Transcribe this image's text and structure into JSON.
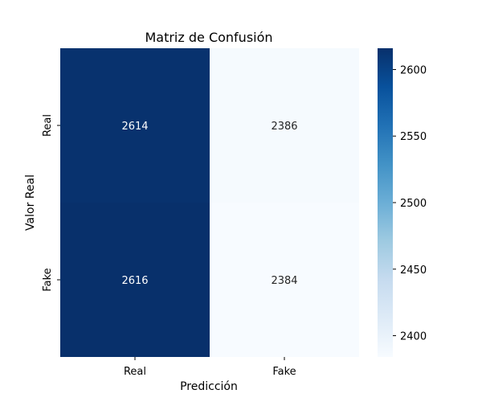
{
  "chart_data": {
    "type": "heatmap",
    "title": "Matriz de Confusión",
    "xlabel": "Predicción",
    "ylabel": "Valor Real",
    "x_categories": [
      "Real",
      "Fake"
    ],
    "y_categories": [
      "Real",
      "Fake"
    ],
    "values": [
      [
        2614,
        2386
      ],
      [
        2616,
        2384
      ]
    ],
    "colormap": "Blues",
    "colorbar": {
      "vmin": 2384,
      "vmax": 2616,
      "ticks": [
        2400,
        2450,
        2500,
        2550,
        2600
      ]
    },
    "annotation_colors": {
      "dark_cell": "#ffffff",
      "light_cell": "#262626"
    },
    "grid": false,
    "legend": "colorbar-right"
  }
}
